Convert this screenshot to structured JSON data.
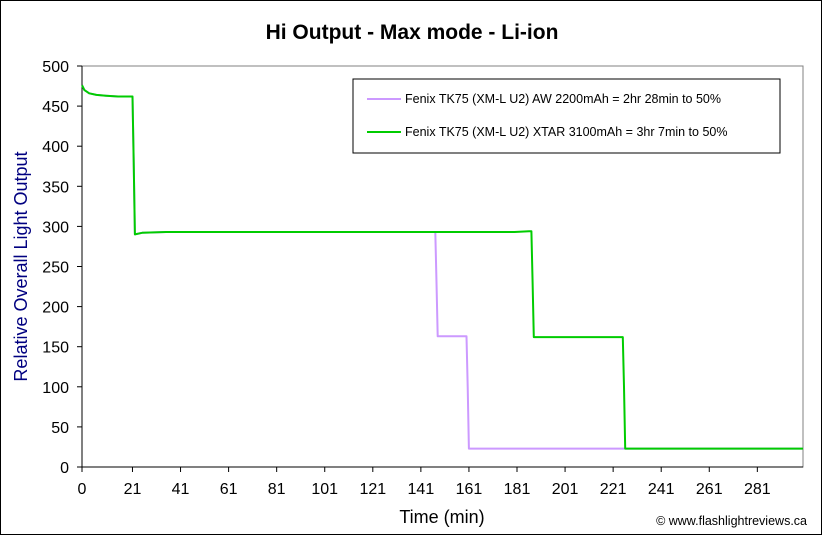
{
  "chart_data": {
    "type": "line",
    "title": "Hi Output - Max mode - Li-ion",
    "xlabel": "Time (min)",
    "ylabel": "Relative Overall Light Output",
    "xlim": [
      0,
      300
    ],
    "ylim": [
      0,
      500
    ],
    "x_ticks": [
      0,
      21,
      41,
      61,
      81,
      101,
      121,
      141,
      161,
      181,
      201,
      221,
      241,
      261,
      281
    ],
    "y_ticks": [
      0,
      50,
      100,
      150,
      200,
      250,
      300,
      350,
      400,
      450,
      500
    ],
    "grid": false,
    "legend_position": "top-right",
    "series": [
      {
        "name": "Fenix TK75 (XM-L U2) AW 2200mAh = 2hr 28min to 50%",
        "color": "#cc99ff",
        "x": [
          0,
          1,
          3,
          6,
          10,
          15,
          20,
          21,
          21.5,
          22,
          25,
          35,
          60,
          100,
          140,
          147,
          147.5,
          148,
          155,
          160,
          160.5,
          161,
          200,
          240,
          280,
          300
        ],
        "y": [
          476,
          470,
          466,
          464,
          463,
          462,
          462,
          462,
          380,
          290,
          292,
          293,
          293,
          293,
          293,
          293,
          230,
          163,
          163,
          163,
          100,
          23,
          23,
          23,
          23,
          23
        ]
      },
      {
        "name": "Fenix TK75 (XM-L U2) XTAR 3100mAh = 3hr 7min to 50%",
        "color": "#00cc00",
        "x": [
          0,
          1,
          3,
          6,
          10,
          15,
          20,
          21,
          21.5,
          22,
          25,
          35,
          60,
          100,
          140,
          180,
          186,
          187,
          187.5,
          188,
          200,
          210,
          224,
          225,
          225.5,
          226,
          250,
          280,
          300
        ],
        "y": [
          476,
          470,
          466,
          464,
          463,
          462,
          462,
          462,
          380,
          290,
          292,
          293,
          293,
          293,
          293,
          293,
          294,
          294,
          230,
          162,
          162,
          162,
          162,
          162,
          100,
          23,
          23,
          23,
          23
        ]
      }
    ]
  },
  "credit": "© www.flashlightreviews.ca"
}
